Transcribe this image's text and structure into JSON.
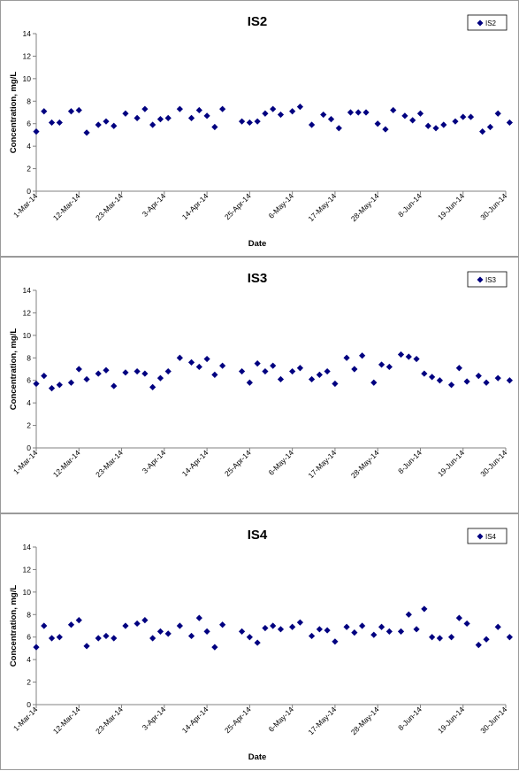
{
  "chart_data": [
    {
      "type": "scatter",
      "title": "IS2",
      "xlabel": "Date",
      "ylabel": "Concentration, mg/L",
      "ylim": [
        0,
        14
      ],
      "yticks": [
        "0",
        "2",
        "4",
        "6",
        "8",
        "10",
        "12",
        "14"
      ],
      "xlim": [
        "2014-03-01",
        "2014-06-30"
      ],
      "xticks": [
        "1-Mar-14",
        "12-Mar-14",
        "23-Mar-14",
        "3-Apr-14",
        "14-Apr-14",
        "25-Apr-14",
        "6-May-14",
        "17-May-14",
        "28-May-14",
        "8-Jun-14",
        "19-Jun-14",
        "30-Jun-14"
      ],
      "grid": false,
      "legend": "top-right",
      "color": "#000080",
      "series": [
        {
          "name": "IS2",
          "x": [
            "2014-03-01",
            "2014-03-03",
            "2014-03-05",
            "2014-03-07",
            "2014-03-10",
            "2014-03-12",
            "2014-03-14",
            "2014-03-17",
            "2014-03-19",
            "2014-03-21",
            "2014-03-24",
            "2014-03-27",
            "2014-03-29",
            "2014-03-31",
            "2014-04-02",
            "2014-04-04",
            "2014-04-07",
            "2014-04-10",
            "2014-04-12",
            "2014-04-14",
            "2014-04-16",
            "2014-04-18",
            "2014-04-23",
            "2014-04-25",
            "2014-04-27",
            "2014-04-29",
            "2014-05-01",
            "2014-05-03",
            "2014-05-06",
            "2014-05-08",
            "2014-05-11",
            "2014-05-14",
            "2014-05-16",
            "2014-05-18",
            "2014-05-21",
            "2014-05-23",
            "2014-05-25",
            "2014-05-28",
            "2014-05-30",
            "2014-06-01",
            "2014-06-04",
            "2014-06-06",
            "2014-06-08",
            "2014-06-10",
            "2014-06-12",
            "2014-06-14",
            "2014-06-17",
            "2014-06-19",
            "2014-06-21",
            "2014-06-24",
            "2014-06-26",
            "2014-06-28",
            "2014-07-01"
          ],
          "y": [
            5.3,
            7.1,
            6.1,
            6.1,
            7.1,
            7.2,
            5.2,
            5.9,
            6.2,
            5.8,
            6.9,
            6.5,
            7.3,
            5.9,
            6.4,
            6.5,
            7.3,
            6.5,
            7.2,
            6.7,
            5.7,
            7.3,
            6.2,
            6.1,
            6.2,
            6.9,
            7.3,
            6.8,
            7.1,
            7.5,
            5.9,
            6.8,
            6.4,
            5.6,
            7.0,
            7.0,
            7.0,
            6.0,
            5.5,
            7.2,
            6.7,
            6.3,
            6.9,
            5.8,
            5.6,
            5.9,
            6.2,
            6.6,
            6.6,
            5.3,
            5.7,
            6.9,
            6.1
          ]
        }
      ]
    },
    {
      "type": "scatter",
      "title": "IS3",
      "xlabel": "Date",
      "ylabel": "Concentration, mg/L",
      "ylim": [
        0,
        14
      ],
      "yticks": [
        "0",
        "2",
        "4",
        "6",
        "8",
        "10",
        "12",
        "14"
      ],
      "xlim": [
        "2014-03-01",
        "2014-06-30"
      ],
      "xticks": [
        "1-Mar-14",
        "12-Mar-14",
        "23-Mar-14",
        "3-Apr-14",
        "14-Apr-14",
        "25-Apr-14",
        "6-May-14",
        "17-May-14",
        "28-May-14",
        "8-Jun-14",
        "19-Jun-14",
        "30-Jun-14"
      ],
      "grid": false,
      "legend": "top-right",
      "color": "#000080",
      "series": [
        {
          "name": "IS3",
          "x": [
            "2014-03-01",
            "2014-03-03",
            "2014-03-05",
            "2014-03-07",
            "2014-03-10",
            "2014-03-12",
            "2014-03-14",
            "2014-03-17",
            "2014-03-19",
            "2014-03-21",
            "2014-03-24",
            "2014-03-27",
            "2014-03-29",
            "2014-03-31",
            "2014-04-02",
            "2014-04-04",
            "2014-04-07",
            "2014-04-10",
            "2014-04-12",
            "2014-04-14",
            "2014-04-16",
            "2014-04-18",
            "2014-04-23",
            "2014-04-25",
            "2014-04-27",
            "2014-04-29",
            "2014-05-01",
            "2014-05-03",
            "2014-05-06",
            "2014-05-08",
            "2014-05-11",
            "2014-05-13",
            "2014-05-15",
            "2014-05-17",
            "2014-05-20",
            "2014-05-22",
            "2014-05-24",
            "2014-05-27",
            "2014-05-29",
            "2014-05-31",
            "2014-06-03",
            "2014-06-05",
            "2014-06-07",
            "2014-06-09",
            "2014-06-11",
            "2014-06-13",
            "2014-06-16",
            "2014-06-18",
            "2014-06-20",
            "2014-06-23",
            "2014-06-25",
            "2014-06-28",
            "2014-07-01"
          ],
          "y": [
            5.7,
            6.4,
            5.3,
            5.6,
            5.8,
            7.0,
            6.1,
            6.6,
            6.9,
            5.5,
            6.7,
            6.8,
            6.6,
            5.4,
            6.2,
            6.8,
            8.0,
            7.6,
            7.2,
            7.9,
            6.5,
            7.3,
            6.8,
            5.8,
            7.5,
            6.8,
            7.3,
            6.1,
            6.8,
            7.1,
            6.1,
            6.5,
            6.8,
            5.7,
            8.0,
            7.0,
            8.2,
            5.8,
            7.4,
            7.2,
            8.3,
            8.1,
            7.9,
            6.6,
            6.3,
            6.0,
            5.6,
            7.1,
            5.9,
            6.4,
            5.8,
            6.2,
            6.0
          ]
        }
      ]
    },
    {
      "type": "scatter",
      "title": "IS4",
      "xlabel": "Date",
      "ylabel": "Concentration, mg/L",
      "ylim": [
        0,
        14
      ],
      "yticks": [
        "0",
        "2",
        "4",
        "6",
        "8",
        "10",
        "12",
        "14"
      ],
      "xlim": [
        "2014-03-01",
        "2014-06-30"
      ],
      "xticks": [
        "1-Mar-14",
        "12-Mar-14",
        "23-Mar-14",
        "3-Apr-14",
        "14-Apr-14",
        "25-Apr-14",
        "6-May-14",
        "17-May-14",
        "28-May-14",
        "8-Jun-14",
        "19-Jun-14",
        "30-Jun-14"
      ],
      "grid": false,
      "legend": "top-right",
      "color": "#000080",
      "series": [
        {
          "name": "IS4",
          "x": [
            "2014-03-01",
            "2014-03-03",
            "2014-03-05",
            "2014-03-07",
            "2014-03-10",
            "2014-03-12",
            "2014-03-14",
            "2014-03-17",
            "2014-03-19",
            "2014-03-21",
            "2014-03-24",
            "2014-03-27",
            "2014-03-29",
            "2014-03-31",
            "2014-04-02",
            "2014-04-04",
            "2014-04-07",
            "2014-04-10",
            "2014-04-12",
            "2014-04-14",
            "2014-04-16",
            "2014-04-18",
            "2014-04-23",
            "2014-04-25",
            "2014-04-27",
            "2014-04-29",
            "2014-05-01",
            "2014-05-03",
            "2014-05-06",
            "2014-05-08",
            "2014-05-11",
            "2014-05-13",
            "2014-05-15",
            "2014-05-17",
            "2014-05-20",
            "2014-05-22",
            "2014-05-24",
            "2014-05-27",
            "2014-05-29",
            "2014-05-31",
            "2014-06-03",
            "2014-06-05",
            "2014-06-07",
            "2014-06-09",
            "2014-06-11",
            "2014-06-13",
            "2014-06-16",
            "2014-06-18",
            "2014-06-20",
            "2014-06-23",
            "2014-06-25",
            "2014-06-28",
            "2014-07-01"
          ],
          "y": [
            5.1,
            7.0,
            5.9,
            6.0,
            7.1,
            7.5,
            5.2,
            5.9,
            6.1,
            5.9,
            7.0,
            7.2,
            7.5,
            5.9,
            6.5,
            6.3,
            7.0,
            6.1,
            7.7,
            6.5,
            5.1,
            7.1,
            6.5,
            6.0,
            5.5,
            6.8,
            7.0,
            6.7,
            6.9,
            7.3,
            6.1,
            6.7,
            6.6,
            5.6,
            6.9,
            6.4,
            7.0,
            6.2,
            6.9,
            6.5,
            6.5,
            8.0,
            6.7,
            8.5,
            6.0,
            5.9,
            6.0,
            7.7,
            7.2,
            5.3,
            5.8,
            6.9,
            6.0
          ]
        }
      ]
    }
  ]
}
